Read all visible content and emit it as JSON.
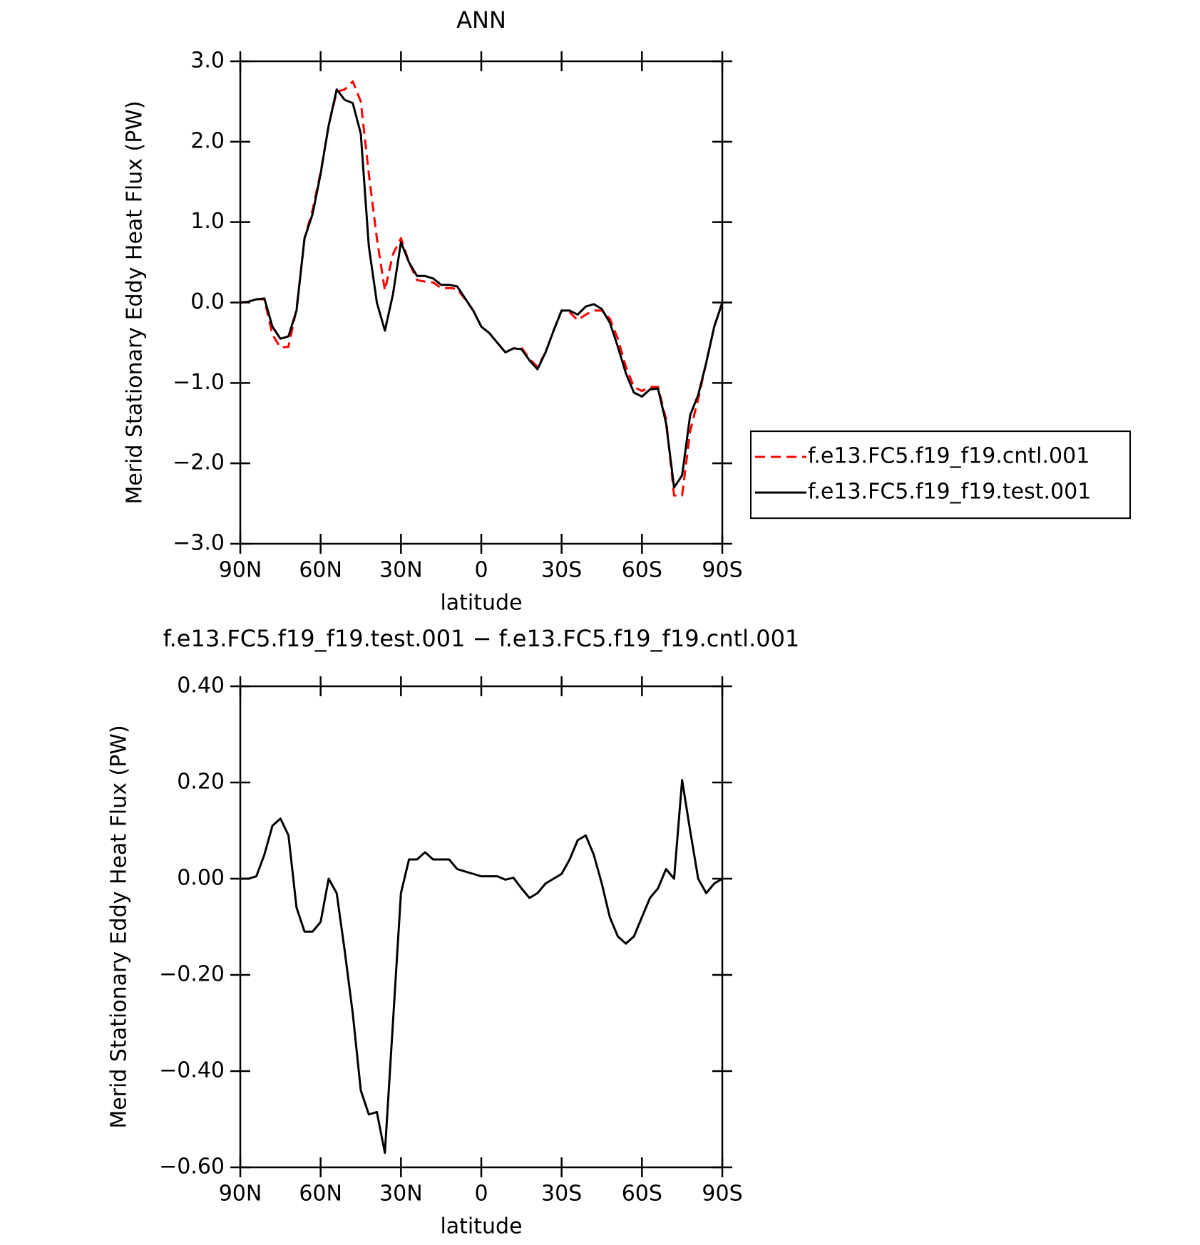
{
  "chart_data": [
    {
      "type": "line",
      "title": "ANN",
      "xlabel": "latitude",
      "ylabel": "Merid Stationary Eddy Heat Flux (PW)",
      "x": [
        90,
        87,
        84,
        81,
        78,
        75,
        72,
        69,
        66,
        63,
        60,
        57,
        54,
        51,
        48,
        45,
        42,
        39,
        36,
        33,
        30,
        27,
        24,
        21,
        18,
        15,
        12,
        9,
        6,
        3,
        0,
        -3,
        -6,
        -9,
        -12,
        -15,
        -18,
        -21,
        -24,
        -27,
        -30,
        -33,
        -36,
        -39,
        -42,
        -45,
        -48,
        -51,
        -54,
        -57,
        -60,
        -63,
        -66,
        -69,
        -72,
        -75,
        -78,
        -81,
        -84,
        -87,
        -90
      ],
      "series": [
        {
          "name": "f.e13.FC5.f19_f19.cntl.001",
          "color": "#ff0000",
          "style": "dashed",
          "values": [
            0.0,
            0.01,
            0.04,
            0.04,
            -0.4,
            -0.56,
            -0.55,
            -0.08,
            0.8,
            1.15,
            1.62,
            2.2,
            2.62,
            2.65,
            2.75,
            2.5,
            1.6,
            0.8,
            0.15,
            0.6,
            0.8,
            0.5,
            0.28,
            0.26,
            0.25,
            0.18,
            0.18,
            0.17,
            0.04,
            -0.1,
            -0.3,
            -0.38,
            -0.5,
            -0.62,
            -0.57,
            -0.56,
            -0.7,
            -0.8,
            -0.62,
            -0.35,
            -0.1,
            -0.12,
            -0.22,
            -0.15,
            -0.1,
            -0.1,
            -0.2,
            -0.45,
            -0.8,
            -1.05,
            -1.1,
            -1.05,
            -1.05,
            -1.45,
            -2.4,
            -2.4,
            -1.6,
            -1.2,
            -0.75,
            -0.3,
            0.0
          ]
        },
        {
          "name": "f.e13.FC5.f19_f19.test.001",
          "color": "#000000",
          "style": "solid",
          "values": [
            0.0,
            0.01,
            0.04,
            0.05,
            -0.3,
            -0.45,
            -0.42,
            -0.1,
            0.8,
            1.1,
            1.6,
            2.2,
            2.65,
            2.52,
            2.48,
            2.1,
            0.7,
            0.0,
            -0.35,
            0.1,
            0.75,
            0.5,
            0.33,
            0.33,
            0.3,
            0.22,
            0.22,
            0.2,
            0.05,
            -0.1,
            -0.3,
            -0.38,
            -0.5,
            -0.62,
            -0.57,
            -0.58,
            -0.72,
            -0.83,
            -0.62,
            -0.35,
            -0.1,
            -0.1,
            -0.15,
            -0.05,
            -0.02,
            -0.08,
            -0.25,
            -0.55,
            -0.88,
            -1.12,
            -1.17,
            -1.08,
            -1.07,
            -1.5,
            -2.3,
            -2.15,
            -1.4,
            -1.15,
            -0.75,
            -0.3,
            0.0
          ]
        }
      ],
      "xlim": [
        90,
        -90
      ],
      "xticks": [
        {
          "value": 90,
          "label": "90N"
        },
        {
          "value": 60,
          "label": "60N"
        },
        {
          "value": 30,
          "label": "30N"
        },
        0,
        {
          "value": -30,
          "label": "30S"
        },
        {
          "value": -60,
          "label": "60S"
        },
        {
          "value": -90,
          "label": "90S"
        }
      ],
      "ylim": [
        -3,
        3
      ],
      "yticks": [
        {
          "value": -3,
          "label": "−3.0"
        },
        {
          "value": -2,
          "label": "−2.0"
        },
        {
          "value": -1,
          "label": "−1.0"
        },
        {
          "value": 0,
          "label": "0.0"
        },
        {
          "value": 1,
          "label": "1.0"
        },
        {
          "value": 2,
          "label": "2.0"
        },
        {
          "value": 3,
          "label": "3.0"
        }
      ],
      "legend": "outside right",
      "grid": false
    },
    {
      "type": "line",
      "title": "f.e13.FC5.f19_f19.test.001 − f.e13.FC5.f19_f19.cntl.001",
      "xlabel": "latitude",
      "ylabel": "Merid Stationary Eddy Heat Flux (PW)",
      "x": [
        90,
        87,
        84,
        81,
        78,
        75,
        72,
        69,
        66,
        63,
        60,
        57,
        54,
        51,
        48,
        45,
        42,
        39,
        36,
        33,
        30,
        27,
        24,
        21,
        18,
        15,
        12,
        9,
        6,
        3,
        0,
        -3,
        -6,
        -9,
        -12,
        -15,
        -18,
        -21,
        -24,
        -27,
        -30,
        -33,
        -36,
        -39,
        -42,
        -45,
        -48,
        -51,
        -54,
        -57,
        -60,
        -63,
        -66,
        -69,
        -72,
        -75,
        -78,
        -81,
        -84,
        -87,
        -90
      ],
      "series": [
        {
          "color": "#000000",
          "style": "solid",
          "values": [
            0.0,
            0.0,
            0.005,
            0.05,
            0.11,
            0.125,
            0.09,
            -0.06,
            -0.11,
            -0.11,
            -0.09,
            0.0,
            -0.03,
            -0.15,
            -0.28,
            -0.44,
            -0.49,
            -0.485,
            -0.57,
            -0.3,
            -0.03,
            0.04,
            0.04,
            0.055,
            0.04,
            0.04,
            0.04,
            0.02,
            0.015,
            0.01,
            0.005,
            0.005,
            0.005,
            -0.002,
            0.002,
            -0.02,
            -0.04,
            -0.03,
            -0.01,
            0.0,
            0.01,
            0.04,
            0.08,
            0.09,
            0.05,
            -0.01,
            -0.08,
            -0.12,
            -0.135,
            -0.12,
            -0.08,
            -0.04,
            -0.02,
            0.02,
            0.0,
            0.205,
            0.1,
            0.0,
            -0.03,
            -0.01,
            0.0
          ]
        }
      ],
      "xlim": [
        90,
        -90
      ],
      "xticks": [
        {
          "value": 90,
          "label": "90N"
        },
        {
          "value": 60,
          "label": "60N"
        },
        {
          "value": 30,
          "label": "30N"
        },
        0,
        {
          "value": -30,
          "label": "30S"
        },
        {
          "value": -60,
          "label": "60S"
        },
        {
          "value": -90,
          "label": "90S"
        }
      ],
      "ylim": [
        -0.6,
        0.4
      ],
      "yticks": [
        {
          "value": -0.6,
          "label": "−0.60"
        },
        {
          "value": -0.4,
          "label": "−0.40"
        },
        {
          "value": -0.2,
          "label": "−0.20"
        },
        {
          "value": 0,
          "label": "0.00"
        },
        {
          "value": 0.2,
          "label": "0.20"
        },
        {
          "value": 0.4,
          "label": "0.40"
        }
      ],
      "grid": false
    }
  ]
}
